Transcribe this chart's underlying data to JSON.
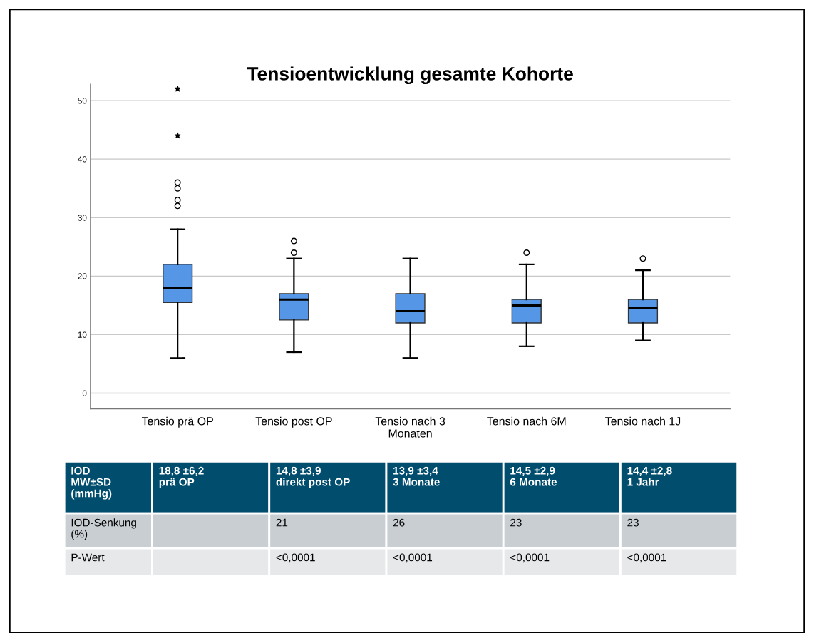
{
  "chart_data": {
    "type": "box",
    "title": "Tensioentwicklung gesamte Kohorte",
    "categories": [
      "Tensio prä OP",
      "Tensio post OP",
      "Tensio nach 3\nMonaten",
      "Tensio nach 6M",
      "Tensio nach 1J"
    ],
    "boxes": [
      {
        "low": 6,
        "q1": 15.5,
        "median": 18,
        "q3": 22,
        "high": 28,
        "outliers": [
          32,
          33,
          35,
          36,
          44,
          52
        ]
      },
      {
        "low": 7,
        "q1": 12.5,
        "median": 16,
        "q3": 17,
        "high": 23,
        "outliers": [
          24,
          26
        ]
      },
      {
        "low": 6,
        "q1": 12,
        "median": 14,
        "q3": 17,
        "high": 23
      },
      {
        "low": 8,
        "q1": 12,
        "median": 15,
        "q3": 16,
        "high": 22,
        "outliers": [
          24
        ]
      },
      {
        "low": 9,
        "q1": 12,
        "median": 14.5,
        "q3": 16,
        "high": 21,
        "outliers": [
          23
        ]
      }
    ],
    "color": "#5596e6",
    "ylim": [
      -2.7,
      52.8
    ],
    "yticks": [
      0,
      10,
      20,
      30,
      40,
      50
    ],
    "grid": "y",
    "annotations": [
      "IOD\nMW±SD\n(mmHg)",
      "18,8 ±6,2\nprä OP",
      "14,8 ±3,9\ndirekt post OP",
      "13,9 ±3,4\n3 Monate",
      "14,5 ±2,9\n6 Monate",
      "14,4 ±2,8\n1 Jahr",
      "IOD-Senkung\n(%)",
      null,
      "21",
      "26",
      "23",
      "23",
      "P-Wert",
      null,
      "<0,0001",
      "<0,0001",
      "<0,0001",
      "<0,0001"
    ]
  }
}
